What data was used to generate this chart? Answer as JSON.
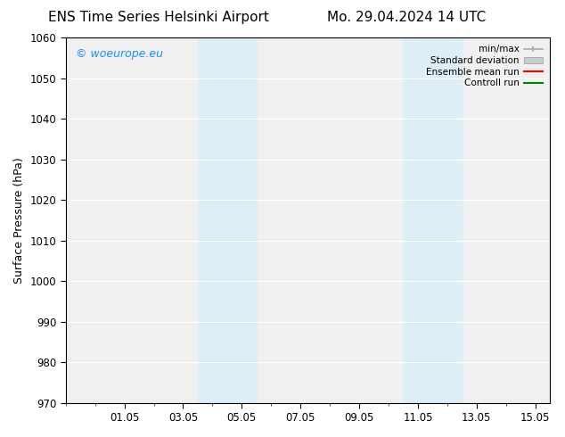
{
  "title_left": "ENS Time Series Helsinki Airport",
  "title_right": "Mo. 29.04.2024 14 UTC",
  "ylabel": "Surface Pressure (hPa)",
  "ylim": [
    970,
    1060
  ],
  "yticks": [
    970,
    980,
    990,
    1000,
    1010,
    1020,
    1030,
    1040,
    1050,
    1060
  ],
  "xlim": [
    0,
    16.5
  ],
  "xtick_labels": [
    "01.05",
    "03.05",
    "05.05",
    "07.05",
    "09.05",
    "11.05",
    "13.05",
    "15.05"
  ],
  "xtick_positions": [
    2,
    4,
    6,
    8,
    10,
    12,
    14,
    16
  ],
  "shaded_bands": [
    {
      "x_start": 4.5,
      "x_end": 6.5
    },
    {
      "x_start": 11.5,
      "x_end": 13.5
    }
  ],
  "shaded_color": "#ddeef8",
  "watermark": "© woeurope.eu",
  "watermark_color": "#1e90ff",
  "legend_items": [
    {
      "label": "min/max",
      "color": "#aaaaaa",
      "lw": 1.2
    },
    {
      "label": "Standard deviation",
      "color": "#cccccc",
      "lw": 6
    },
    {
      "label": "Ensemble mean run",
      "color": "red",
      "lw": 1.5
    },
    {
      "label": "Controll run",
      "color": "green",
      "lw": 1.5
    }
  ],
  "bg_color": "#ffffff",
  "plot_bg_color": "#f0f0f0",
  "grid_color": "#ffffff",
  "title_fontsize": 11,
  "label_fontsize": 9,
  "tick_fontsize": 8.5,
  "watermark_fontsize": 9
}
